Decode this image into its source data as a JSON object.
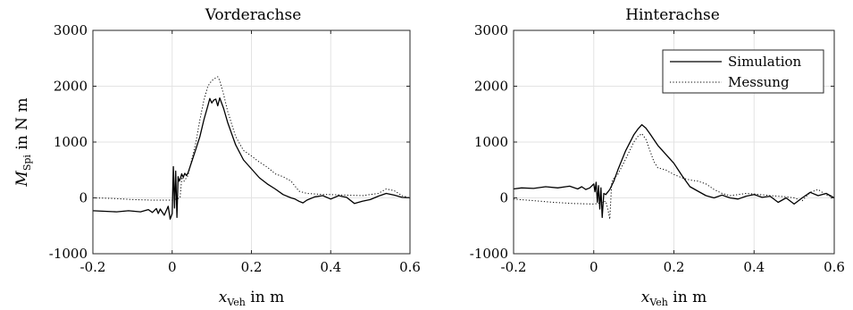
{
  "chart_data": [
    {
      "type": "line",
      "title": "Vorderachse",
      "xlabel_main": "x",
      "xlabel_sub": "Veh",
      "xlabel_rest": " in m",
      "ylabel_main": "M",
      "ylabel_sub": "Spi",
      "ylabel_rest": " in N m",
      "xlim": [
        -0.2,
        0.6
      ],
      "ylim": [
        -1000,
        3000
      ],
      "xticks": [
        "-0.2",
        "0",
        "0.2",
        "0.4",
        "0.6"
      ],
      "yticks": [
        "-1000",
        "0",
        "1000",
        "2000",
        "3000"
      ],
      "grid": true,
      "legend": false,
      "series": [
        {
          "name": "Simulation",
          "style": "solid",
          "x": [
            -0.2,
            -0.17,
            -0.14,
            -0.11,
            -0.08,
            -0.06,
            -0.05,
            -0.04,
            -0.035,
            -0.03,
            -0.02,
            -0.01,
            -0.005,
            0.0,
            0.003,
            0.006,
            0.009,
            0.012,
            0.015,
            0.018,
            0.021,
            0.024,
            0.028,
            0.032,
            0.036,
            0.04,
            0.05,
            0.06,
            0.07,
            0.08,
            0.09,
            0.095,
            0.1,
            0.105,
            0.11,
            0.115,
            0.12,
            0.13,
            0.14,
            0.16,
            0.18,
            0.2,
            0.22,
            0.24,
            0.26,
            0.28,
            0.3,
            0.31,
            0.32,
            0.33,
            0.34,
            0.36,
            0.38,
            0.4,
            0.42,
            0.44,
            0.46,
            0.48,
            0.5,
            0.52,
            0.54,
            0.56,
            0.58,
            0.6
          ],
          "y": [
            -230,
            -240,
            -250,
            -230,
            -250,
            -210,
            -260,
            -190,
            -280,
            -200,
            -310,
            -150,
            -380,
            -280,
            560,
            -180,
            480,
            -350,
            380,
            300,
            350,
            430,
            370,
            440,
            400,
            450,
            660,
            880,
            1100,
            1400,
            1650,
            1780,
            1700,
            1750,
            1770,
            1650,
            1790,
            1600,
            1350,
            950,
            680,
            520,
            360,
            250,
            160,
            60,
            0,
            -20,
            -60,
            -90,
            -40,
            20,
            40,
            -20,
            40,
            10,
            -100,
            -60,
            -30,
            30,
            80,
            50,
            10,
            0
          ]
        },
        {
          "name": "Messung",
          "style": "dotted",
          "x": [
            -0.2,
            -0.15,
            -0.1,
            -0.05,
            0.0,
            0.01,
            0.02,
            0.025,
            0.03,
            0.04,
            0.05,
            0.06,
            0.07,
            0.08,
            0.09,
            0.1,
            0.11,
            0.115,
            0.12,
            0.13,
            0.14,
            0.16,
            0.18,
            0.2,
            0.22,
            0.24,
            0.26,
            0.28,
            0.3,
            0.32,
            0.34,
            0.36,
            0.38,
            0.4,
            0.44,
            0.48,
            0.52,
            0.54,
            0.56,
            0.58,
            0.6
          ],
          "y": [
            0,
            -10,
            -30,
            -40,
            -40,
            -20,
            0,
            400,
            300,
            400,
            700,
            1000,
            1400,
            1750,
            2000,
            2100,
            2150,
            2170,
            2100,
            1850,
            1550,
            1100,
            850,
            750,
            640,
            550,
            430,
            380,
            300,
            120,
            80,
            70,
            60,
            60,
            50,
            40,
            80,
            160,
            130,
            40,
            0
          ]
        }
      ]
    },
    {
      "type": "line",
      "title": "Hinterachse",
      "xlabel_main": "x",
      "xlabel_sub": "Veh",
      "xlabel_rest": " in m",
      "xlim": [
        -0.2,
        0.6
      ],
      "ylim": [
        -1000,
        3000
      ],
      "xticks": [
        "-0.2",
        "0",
        "0.2",
        "0.4",
        "0.6"
      ],
      "yticks": [
        "-1000",
        "0",
        "1000",
        "2000",
        "3000"
      ],
      "grid": true,
      "legend": true,
      "legend_position": "top-right",
      "series": [
        {
          "name": "Simulation",
          "style": "solid",
          "x": [
            -0.2,
            -0.18,
            -0.15,
            -0.12,
            -0.09,
            -0.06,
            -0.04,
            -0.03,
            -0.02,
            -0.01,
            0.0,
            0.003,
            0.006,
            0.009,
            0.012,
            0.015,
            0.018,
            0.021,
            0.025,
            0.03,
            0.04,
            0.05,
            0.06,
            0.08,
            0.1,
            0.11,
            0.12,
            0.13,
            0.14,
            0.16,
            0.18,
            0.2,
            0.22,
            0.24,
            0.26,
            0.28,
            0.3,
            0.32,
            0.34,
            0.36,
            0.38,
            0.4,
            0.42,
            0.44,
            0.46,
            0.48,
            0.5,
            0.52,
            0.54,
            0.56,
            0.58,
            0.6
          ],
          "y": [
            160,
            180,
            170,
            200,
            180,
            210,
            160,
            200,
            150,
            180,
            250,
            110,
            280,
            -80,
            220,
            -200,
            180,
            -350,
            80,
            60,
            150,
            300,
            500,
            850,
            1130,
            1230,
            1310,
            1250,
            1150,
            940,
            780,
            620,
            400,
            200,
            120,
            40,
            0,
            50,
            0,
            -20,
            30,
            60,
            10,
            30,
            -80,
            0,
            -110,
            0,
            100,
            40,
            80,
            0
          ]
        },
        {
          "name": "Messung",
          "style": "dotted",
          "x": [
            -0.2,
            -0.15,
            -0.1,
            -0.05,
            0.0,
            0.01,
            0.02,
            0.03,
            0.035,
            0.04,
            0.045,
            0.05,
            0.06,
            0.08,
            0.1,
            0.11,
            0.12,
            0.13,
            0.14,
            0.15,
            0.16,
            0.18,
            0.2,
            0.22,
            0.24,
            0.26,
            0.28,
            0.3,
            0.32,
            0.34,
            0.36,
            0.38,
            0.4,
            0.44,
            0.48,
            0.5,
            0.52,
            0.54,
            0.56,
            0.58,
            0.6
          ],
          "y": [
            -20,
            -50,
            -80,
            -100,
            -110,
            -100,
            -80,
            -60,
            -200,
            -380,
            280,
            350,
            420,
            700,
            1000,
            1100,
            1150,
            1050,
            850,
            650,
            540,
            500,
            420,
            360,
            320,
            300,
            250,
            150,
            80,
            40,
            60,
            80,
            70,
            40,
            20,
            0,
            -50,
            100,
            150,
            50,
            0
          ]
        }
      ]
    }
  ]
}
